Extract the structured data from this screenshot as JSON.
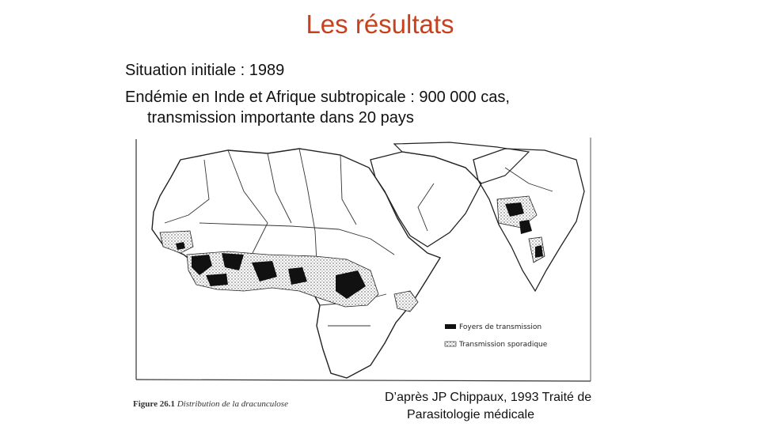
{
  "slide": {
    "title": "Les résultats",
    "title_color": "#c8401c"
  },
  "bullets": [
    "Situation initiale : 1989",
    "Endémie en Inde et Afrique subtropicale : 900 000 cas,",
    "transmission importante dans 20 pays"
  ],
  "figure": {
    "caption_number": "Figure 26.1",
    "caption_title": "Distribution de la dracunculose",
    "legend": {
      "foyers": "Foyers de transmission",
      "sporadique": "Transmission sporadique"
    }
  },
  "credit": {
    "line1": "D’après JP Chippaux,  1993 Traité de",
    "line2": "Parasitologie médicale"
  }
}
